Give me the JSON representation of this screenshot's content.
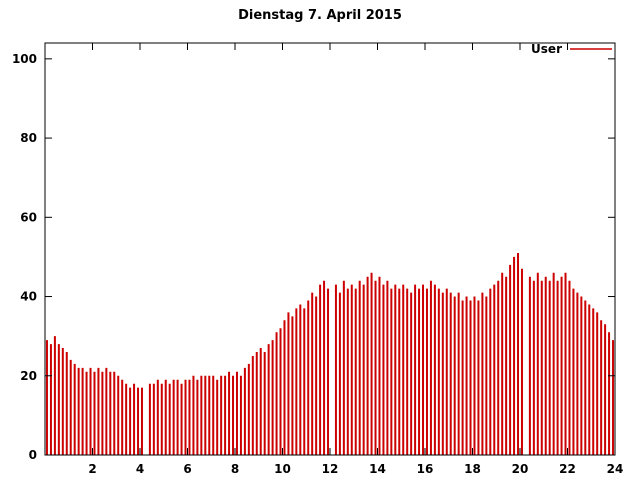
{
  "title": "Dienstag 7. April 2015",
  "legend": {
    "label": "User",
    "color": "#cc0000"
  },
  "chart_data": {
    "type": "bar",
    "title": "Dienstag 7. April 2015",
    "xlabel": "",
    "ylabel": "",
    "xlim": [
      0,
      24
    ],
    "ylim": [
      0,
      104
    ],
    "x_ticks": [
      2,
      4,
      6,
      8,
      10,
      12,
      14,
      16,
      18,
      20,
      22,
      24
    ],
    "y_ticks": [
      0,
      20,
      40,
      60,
      80,
      100
    ],
    "grid": false,
    "legend_position": "top-right",
    "bar_color": "#cc0000",
    "sample_interval_minutes": 10,
    "series": [
      {
        "name": "User",
        "values": [
          29,
          28,
          30,
          28,
          27,
          26,
          24,
          23,
          22,
          22,
          21,
          22,
          21,
          22,
          21,
          22,
          21,
          21,
          20,
          19,
          18,
          17,
          18,
          17,
          17,
          0,
          18,
          18,
          19,
          18,
          19,
          18,
          19,
          19,
          18,
          19,
          19,
          20,
          19,
          20,
          20,
          20,
          20,
          19,
          20,
          20,
          21,
          20,
          21,
          20,
          22,
          23,
          25,
          26,
          27,
          26,
          28,
          29,
          31,
          32,
          34,
          36,
          35,
          37,
          38,
          37,
          39,
          41,
          40,
          43,
          44,
          42,
          0,
          43,
          41,
          44,
          42,
          43,
          42,
          44,
          43,
          45,
          46,
          44,
          45,
          43,
          44,
          42,
          43,
          42,
          43,
          42,
          41,
          43,
          42,
          43,
          42,
          44,
          43,
          42,
          41,
          42,
          41,
          40,
          41,
          39,
          40,
          39,
          40,
          39,
          41,
          40,
          42,
          43,
          44,
          46,
          45,
          48,
          50,
          51,
          47,
          0,
          45,
          44,
          46,
          44,
          45,
          44,
          46,
          44,
          45,
          46,
          44,
          42,
          41,
          40,
          39,
          38,
          37,
          36,
          34,
          33,
          31,
          29
        ]
      }
    ]
  }
}
